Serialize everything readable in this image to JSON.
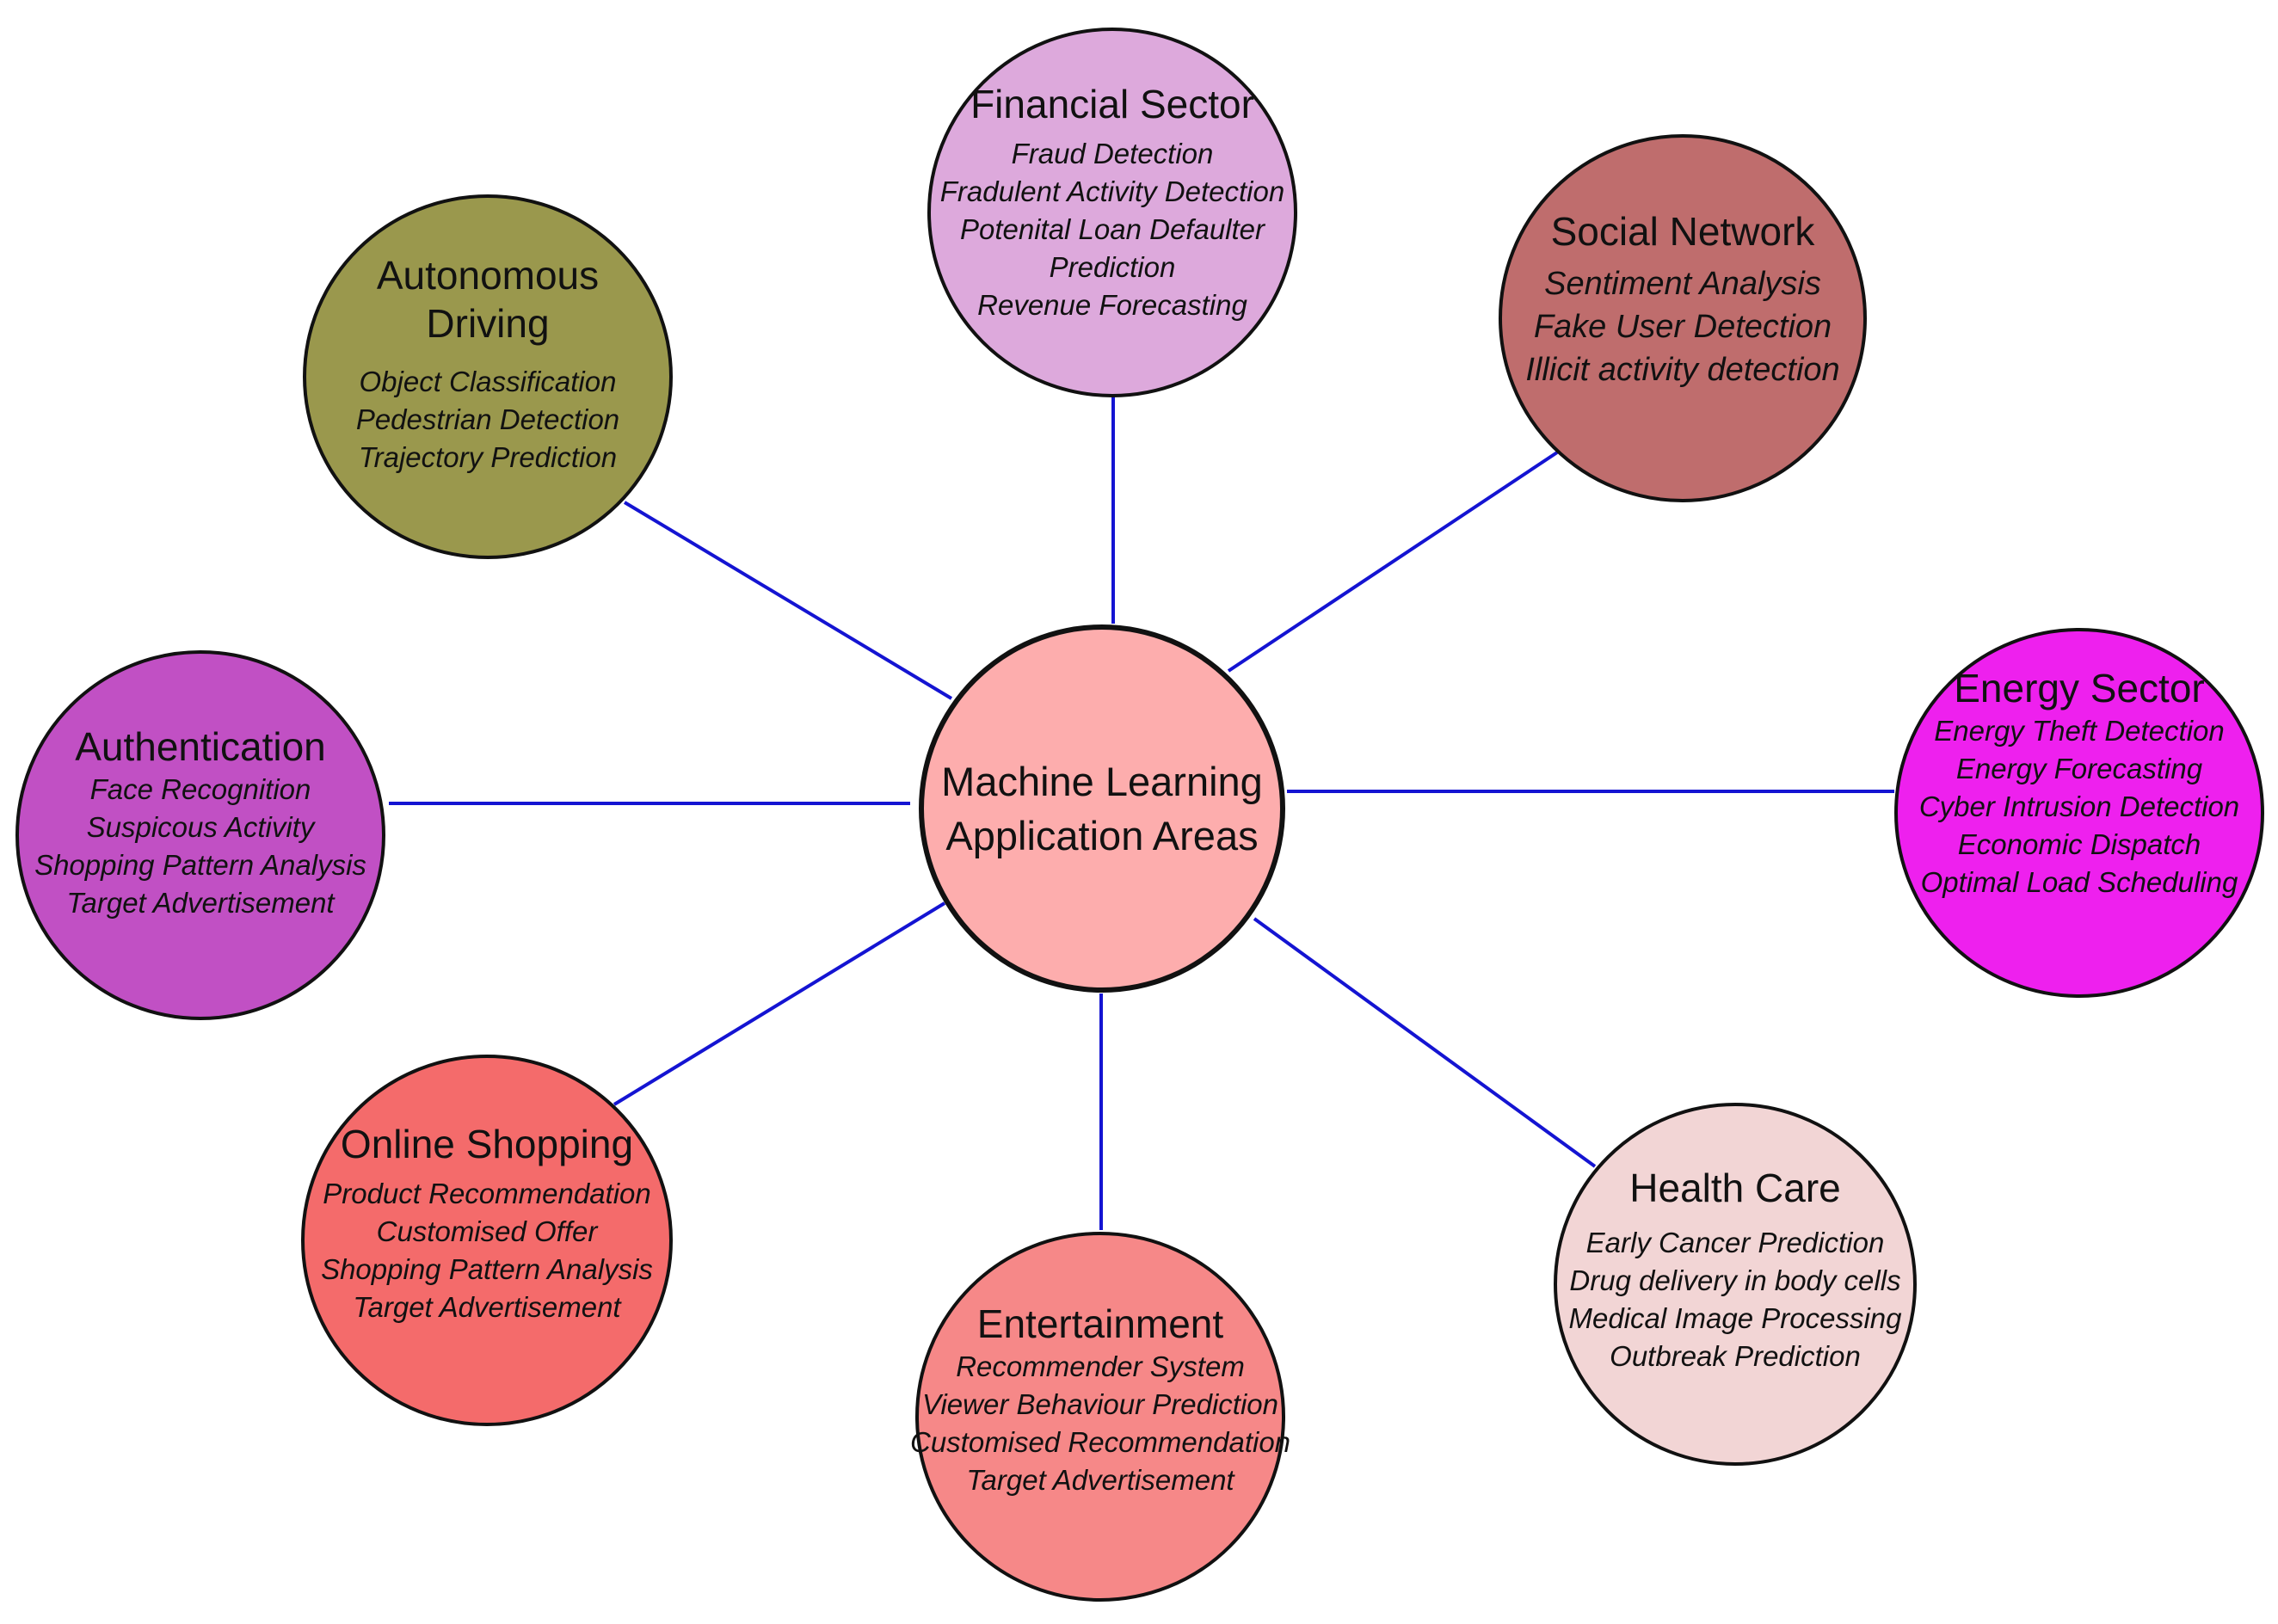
{
  "center": {
    "title": "Machine Learning\nApplication Areas",
    "color": "#fdadad"
  },
  "nodes": {
    "financial": {
      "title": "Financial Sector",
      "color": "#dda9dc",
      "items": [
        "Fraud Detection",
        "Fradulent Activity Detection",
        "Potenital Loan Defaulter",
        "Prediction",
        "Revenue Forecasting"
      ]
    },
    "social": {
      "title": "Social Network",
      "color": "#bf6d6d",
      "items": [
        "Sentiment Analysis",
        "Fake User Detection",
        "Illicit activity detection"
      ]
    },
    "autonomous": {
      "title": "Autonomous\nDriving",
      "color": "#9a984d",
      "items": [
        "Object Classification",
        "Pedestrian Detection",
        "Trajectory Prediction"
      ]
    },
    "energy": {
      "title": "Energy Sector",
      "color": "#ee20ee",
      "items": [
        "Energy Theft Detection",
        "Energy Forecasting",
        "Cyber Intrusion Detection",
        "Economic Dispatch",
        "Optimal Load Scheduling"
      ]
    },
    "authentication": {
      "title": "Authentication",
      "color": "#c150c4",
      "items": [
        "Face Recognition",
        "Suspicous Activity",
        "Shopping Pattern Analysis",
        "Target Advertisement"
      ]
    },
    "online_shopping": {
      "title": "Online Shopping",
      "color": "#f46b6b",
      "items": [
        "Product Recommendation",
        "Customised Offer",
        "Shopping Pattern Analysis",
        "Target Advertisement"
      ]
    },
    "entertainment": {
      "title": "Entertainment",
      "color": "#f68888",
      "items": [
        "Recommender System",
        "Viewer Behaviour Prediction",
        "Customised Recommendation",
        "Target Advertisement"
      ]
    },
    "health": {
      "title": "Health Care",
      "color": "#f2d5d5",
      "items": [
        "Early Cancer Prediction",
        "Drug delivery in body cells",
        "Medical Image Processing",
        "Outbreak Prediction"
      ]
    }
  },
  "line_color": "#1414d2"
}
